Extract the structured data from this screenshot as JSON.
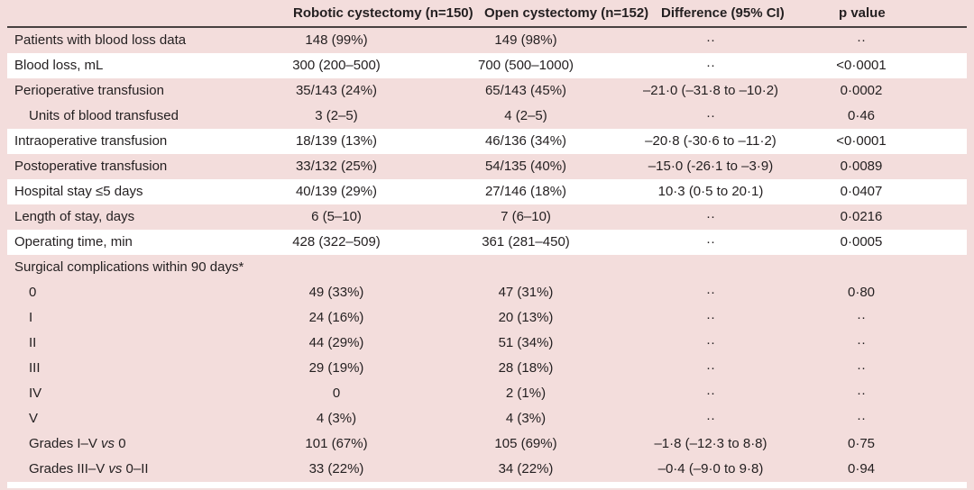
{
  "table": {
    "columns": [
      "",
      "Robotic cystectomy (n=150)",
      "Open cystectomy (n=152)",
      "Difference (95% CI)",
      "p value"
    ],
    "rows": [
      {
        "label": "Patients with blood loss data",
        "indent": false,
        "shade": "pink",
        "values": [
          "148 (99%)",
          "149 (98%)",
          "··",
          "··"
        ]
      },
      {
        "label": "Blood loss, mL",
        "indent": false,
        "shade": "white",
        "values": [
          "300 (200–500)",
          "700 (500–1000)",
          "··",
          "<0·0001"
        ]
      },
      {
        "label": "Perioperative transfusion",
        "indent": false,
        "shade": "pink",
        "values": [
          "35/143 (24%)",
          "65/143 (45%)",
          "–21·0 (–31·8 to –10·2)",
          "0·0002"
        ]
      },
      {
        "label": "Units of blood transfused",
        "indent": true,
        "shade": "pink",
        "values": [
          "3 (2–5)",
          "4 (2–5)",
          "··",
          "0·46"
        ]
      },
      {
        "label": "Intraoperative transfusion",
        "indent": false,
        "shade": "white",
        "values": [
          "18/139 (13%)",
          "46/136 (34%)",
          "–20·8 (-30·6 to –11·2)",
          "<0·0001"
        ]
      },
      {
        "label": "Postoperative transfusion",
        "indent": false,
        "shade": "pink",
        "values": [
          "33/132 (25%)",
          "54/135 (40%)",
          "–15·0 (-26·1 to –3·9)",
          "0·0089"
        ]
      },
      {
        "label": "Hospital stay ≤5 days",
        "indent": false,
        "shade": "white",
        "values": [
          "40/139 (29%)",
          "27/146 (18%)",
          "10·3 (0·5 to 20·1)",
          "0·0407"
        ]
      },
      {
        "label": "Length of stay, days",
        "indent": false,
        "shade": "pink",
        "values": [
          "6 (5–10)",
          "7 (6–10)",
          "··",
          "0·0216"
        ]
      },
      {
        "label": "Operating time, min",
        "indent": false,
        "shade": "white",
        "values": [
          "428 (322–509)",
          "361 (281–450)",
          "··",
          "0·0005"
        ]
      },
      {
        "label": "Surgical complications within 90 days*",
        "indent": false,
        "shade": "pink",
        "values": [
          "",
          "",
          "",
          ""
        ]
      },
      {
        "label": "0",
        "indent": true,
        "shade": "pink",
        "values": [
          "49 (33%)",
          "47 (31%)",
          "··",
          "0·80"
        ]
      },
      {
        "label": "I",
        "indent": true,
        "shade": "pink",
        "values": [
          "24 (16%)",
          "20 (13%)",
          "··",
          "··"
        ]
      },
      {
        "label": "II",
        "indent": true,
        "shade": "pink",
        "values": [
          "44 (29%)",
          "51 (34%)",
          "··",
          "··"
        ]
      },
      {
        "label": "III",
        "indent": true,
        "shade": "pink",
        "values": [
          "29 (19%)",
          "28 (18%)",
          "··",
          "··"
        ]
      },
      {
        "label": "IV",
        "indent": true,
        "shade": "pink",
        "values": [
          "0",
          "2 (1%)",
          "··",
          "··"
        ]
      },
      {
        "label": "V",
        "indent": true,
        "shade": "pink",
        "values": [
          "4 (3%)",
          "4 (3%)",
          "··",
          "··"
        ]
      },
      {
        "label": "Grades I–V vs 0",
        "indent": true,
        "shade": "pink",
        "label_parts": [
          {
            "t": "Grades I–V ",
            "i": false
          },
          {
            "t": "vs",
            "i": true
          },
          {
            "t": " 0",
            "i": false
          }
        ],
        "values": [
          "101 (67%)",
          "105 (69%)",
          "–1·8 (–12·3 to 8·8)",
          "0·75"
        ]
      },
      {
        "label": "Grades III–V vs 0–II",
        "indent": true,
        "shade": "pink",
        "label_parts": [
          {
            "t": "Grades III–V ",
            "i": false
          },
          {
            "t": "vs",
            "i": true
          },
          {
            "t": " 0–II",
            "i": false
          }
        ],
        "values": [
          "33 (22%)",
          "34 (22%)",
          "–0·4 (–9·0 to 9·8)",
          "0·94"
        ]
      }
    ]
  },
  "colors": {
    "row_pink": "#f3dddc",
    "row_white": "#ffffff",
    "text": "#231f20",
    "header_rule": "#474040"
  }
}
